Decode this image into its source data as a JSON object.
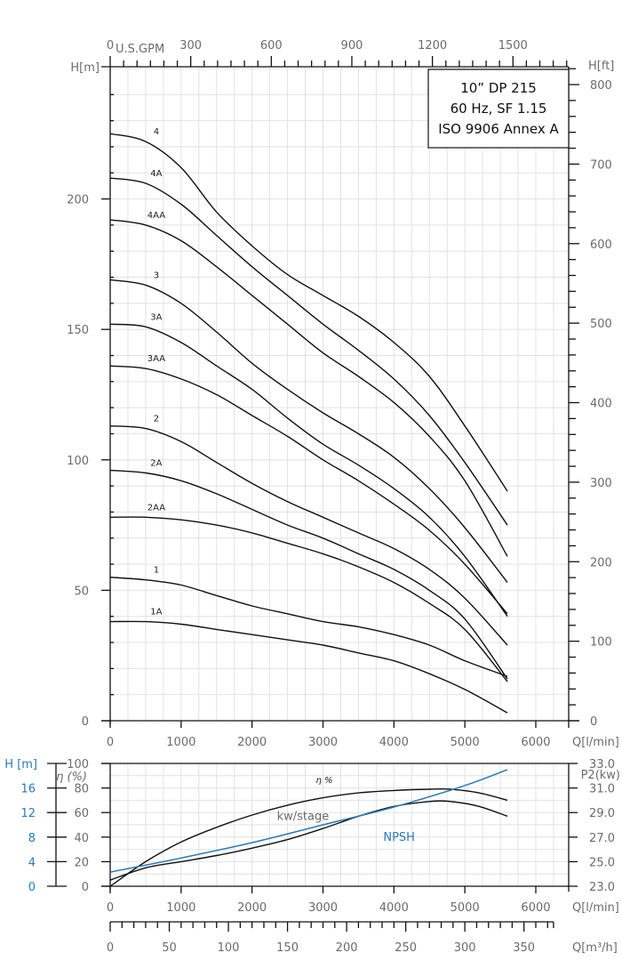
{
  "chart_data": [
    {
      "type": "line",
      "title": "10\" DP 215 — 60 Hz, SF 1.15 — ISO 9906 Annex A",
      "title_lines": [
        "10” DP 215",
        "60 Hz, SF 1.15",
        "ISO 9906 Annex A"
      ],
      "xlabel": "Q[l/min]",
      "ylabel": "H[m]",
      "ylabel_right": "H[ft]",
      "xlabel_top_unit": "U.S.GPM",
      "xlim": [
        0,
        6450
      ],
      "ylim": [
        0,
        250
      ],
      "x_ticks": [
        0,
        1000,
        2000,
        3000,
        4000,
        5000,
        6000
      ],
      "y_ticks": [
        0,
        50,
        100,
        150,
        200
      ],
      "y_right_ticks": [
        0,
        100,
        200,
        300,
        400,
        500,
        600,
        700,
        800
      ],
      "x_top_ticks": [
        0,
        300,
        600,
        900,
        1200,
        1500
      ],
      "grid": true,
      "series": [
        {
          "name": "4",
          "x": [
            0,
            500,
            1000,
            1500,
            2000,
            2500,
            3000,
            3500,
            4000,
            4500,
            5000,
            5600
          ],
          "values": [
            225,
            222,
            212,
            195,
            182,
            171,
            163,
            155,
            145,
            132,
            113,
            88
          ]
        },
        {
          "name": "4A",
          "x": [
            0,
            500,
            1000,
            1500,
            2000,
            2500,
            3000,
            3500,
            4000,
            4500,
            5000,
            5600
          ],
          "values": [
            208,
            206,
            198,
            186,
            174,
            163,
            152,
            142,
            131,
            117,
            99,
            75
          ]
        },
        {
          "name": "4AA",
          "x": [
            0,
            500,
            1000,
            1500,
            2000,
            2500,
            3000,
            3500,
            4000,
            4500,
            5000,
            5600
          ],
          "values": [
            192,
            190,
            184,
            174,
            163,
            152,
            141,
            132,
            122,
            109,
            92,
            63
          ]
        },
        {
          "name": "3",
          "x": [
            0,
            500,
            1000,
            1500,
            2000,
            2500,
            3000,
            3500,
            4000,
            4500,
            5000,
            5600
          ],
          "values": [
            169,
            167,
            160,
            149,
            137,
            127,
            118,
            110,
            101,
            89,
            74,
            53
          ]
        },
        {
          "name": "3A",
          "x": [
            0,
            500,
            1000,
            1500,
            2000,
            2500,
            3000,
            3500,
            4000,
            4500,
            5000,
            5600
          ],
          "values": [
            152,
            151,
            145,
            136,
            127,
            116,
            106,
            98,
            89,
            78,
            63,
            40
          ]
        },
        {
          "name": "3AA",
          "x": [
            0,
            500,
            1000,
            1500,
            2000,
            2500,
            3000,
            3500,
            4000,
            4500,
            5000,
            5600
          ],
          "values": [
            136,
            135,
            131,
            125,
            117,
            109,
            100,
            92,
            83,
            73,
            60,
            41
          ]
        },
        {
          "name": "2",
          "x": [
            0,
            500,
            1000,
            1500,
            2000,
            2500,
            3000,
            3500,
            4000,
            4500,
            5000,
            5600
          ],
          "values": [
            113,
            112,
            107,
            99,
            91,
            84,
            78,
            72,
            66,
            58,
            47,
            29
          ]
        },
        {
          "name": "2A",
          "x": [
            0,
            500,
            1000,
            1500,
            2000,
            2500,
            3000,
            3500,
            4000,
            4500,
            5000,
            5600
          ],
          "values": [
            96,
            95,
            92,
            87,
            81,
            75,
            70,
            64,
            58,
            50,
            39,
            16
          ]
        },
        {
          "name": "2AA",
          "x": [
            0,
            500,
            1000,
            1500,
            2000,
            2500,
            3000,
            3500,
            4000,
            4500,
            5000,
            5600
          ],
          "values": [
            78,
            78,
            77,
            75,
            72,
            68,
            64,
            59,
            53,
            45,
            35,
            15
          ]
        },
        {
          "name": "1",
          "x": [
            0,
            500,
            1000,
            1500,
            2000,
            2500,
            3000,
            3500,
            4000,
            4500,
            5000,
            5600
          ],
          "values": [
            55,
            54,
            52,
            48,
            44,
            41,
            38,
            36,
            33,
            29,
            23,
            17
          ]
        },
        {
          "name": "1A",
          "x": [
            0,
            500,
            1000,
            1500,
            2000,
            2500,
            3000,
            3500,
            4000,
            4500,
            5000,
            5600
          ],
          "values": [
            38,
            38,
            37,
            35,
            33,
            31,
            29,
            26,
            23,
            18,
            12,
            3
          ]
        }
      ]
    },
    {
      "type": "line",
      "title": "Efficiency / Power / NPSH",
      "xlabel": "Q[l/min]",
      "ylabel": "η (%)",
      "ylabel_left_blue": "H [m]",
      "ylabel_right": "P2(kw)",
      "xlim": [
        0,
        6450
      ],
      "ylim": [
        0,
        100
      ],
      "x_ticks": [
        0,
        1000,
        2000,
        3000,
        4000,
        5000,
        6000
      ],
      "y_ticks": [
        0,
        20,
        40,
        60,
        80,
        100
      ],
      "y_npsh_ticks": [
        0,
        4,
        8,
        12,
        16
      ],
      "y_right_ticks": [
        "23.0",
        "25.0",
        "27.0",
        "29.0",
        "31.0",
        "33.0"
      ],
      "grid": true,
      "series": [
        {
          "name": "η %",
          "x": [
            0,
            500,
            1000,
            1500,
            2000,
            2500,
            3000,
            3500,
            4000,
            4500,
            4800,
            5200,
            5600
          ],
          "values": [
            0,
            20,
            36,
            48,
            58,
            66,
            72,
            76,
            78,
            79,
            79,
            76,
            70
          ]
        },
        {
          "name": "kw/stage",
          "x": [
            0,
            500,
            1000,
            1500,
            2000,
            2500,
            3000,
            3500,
            4000,
            4500,
            4800,
            5200,
            5600
          ],
          "values": [
            5,
            15,
            20,
            25,
            31,
            38,
            47,
            57,
            65,
            69,
            69,
            65,
            57
          ],
          "axis": "P2(kw) 23.0–33.0 scaled"
        },
        {
          "name": "NPSH",
          "x": [
            0,
            1000,
            2000,
            3000,
            4000,
            5000,
            5600
          ],
          "values": [
            2.3,
            4.6,
            7.1,
            10.0,
            12.9,
            16.4,
            19.0
          ],
          "unit": "m",
          "color": "#2a7ab8"
        }
      ]
    },
    {
      "type": "axis",
      "xlabel": "Q[m³/h]",
      "x_ticks": [
        0,
        50,
        100,
        150,
        200,
        250,
        300,
        350
      ]
    }
  ],
  "labels": {
    "h_m": "H[m]",
    "h_ft": "H[ft]",
    "q_lmin": "Q[l/min]",
    "q_m3h": "Q[m³/h]",
    "usgpm": "U.S.GPM",
    "eta_pct": "η (%)",
    "eta_curve": "η %",
    "kw_stage": "kw/stage",
    "npsh": "NPSH",
    "p2": "P2(kw)",
    "h_m_lower": "H [m]"
  },
  "colors": {
    "curve": "#111111",
    "grid": "#e2e2e2",
    "npsh": "#2a7ab8",
    "tick_text": "#6b6b6b"
  }
}
